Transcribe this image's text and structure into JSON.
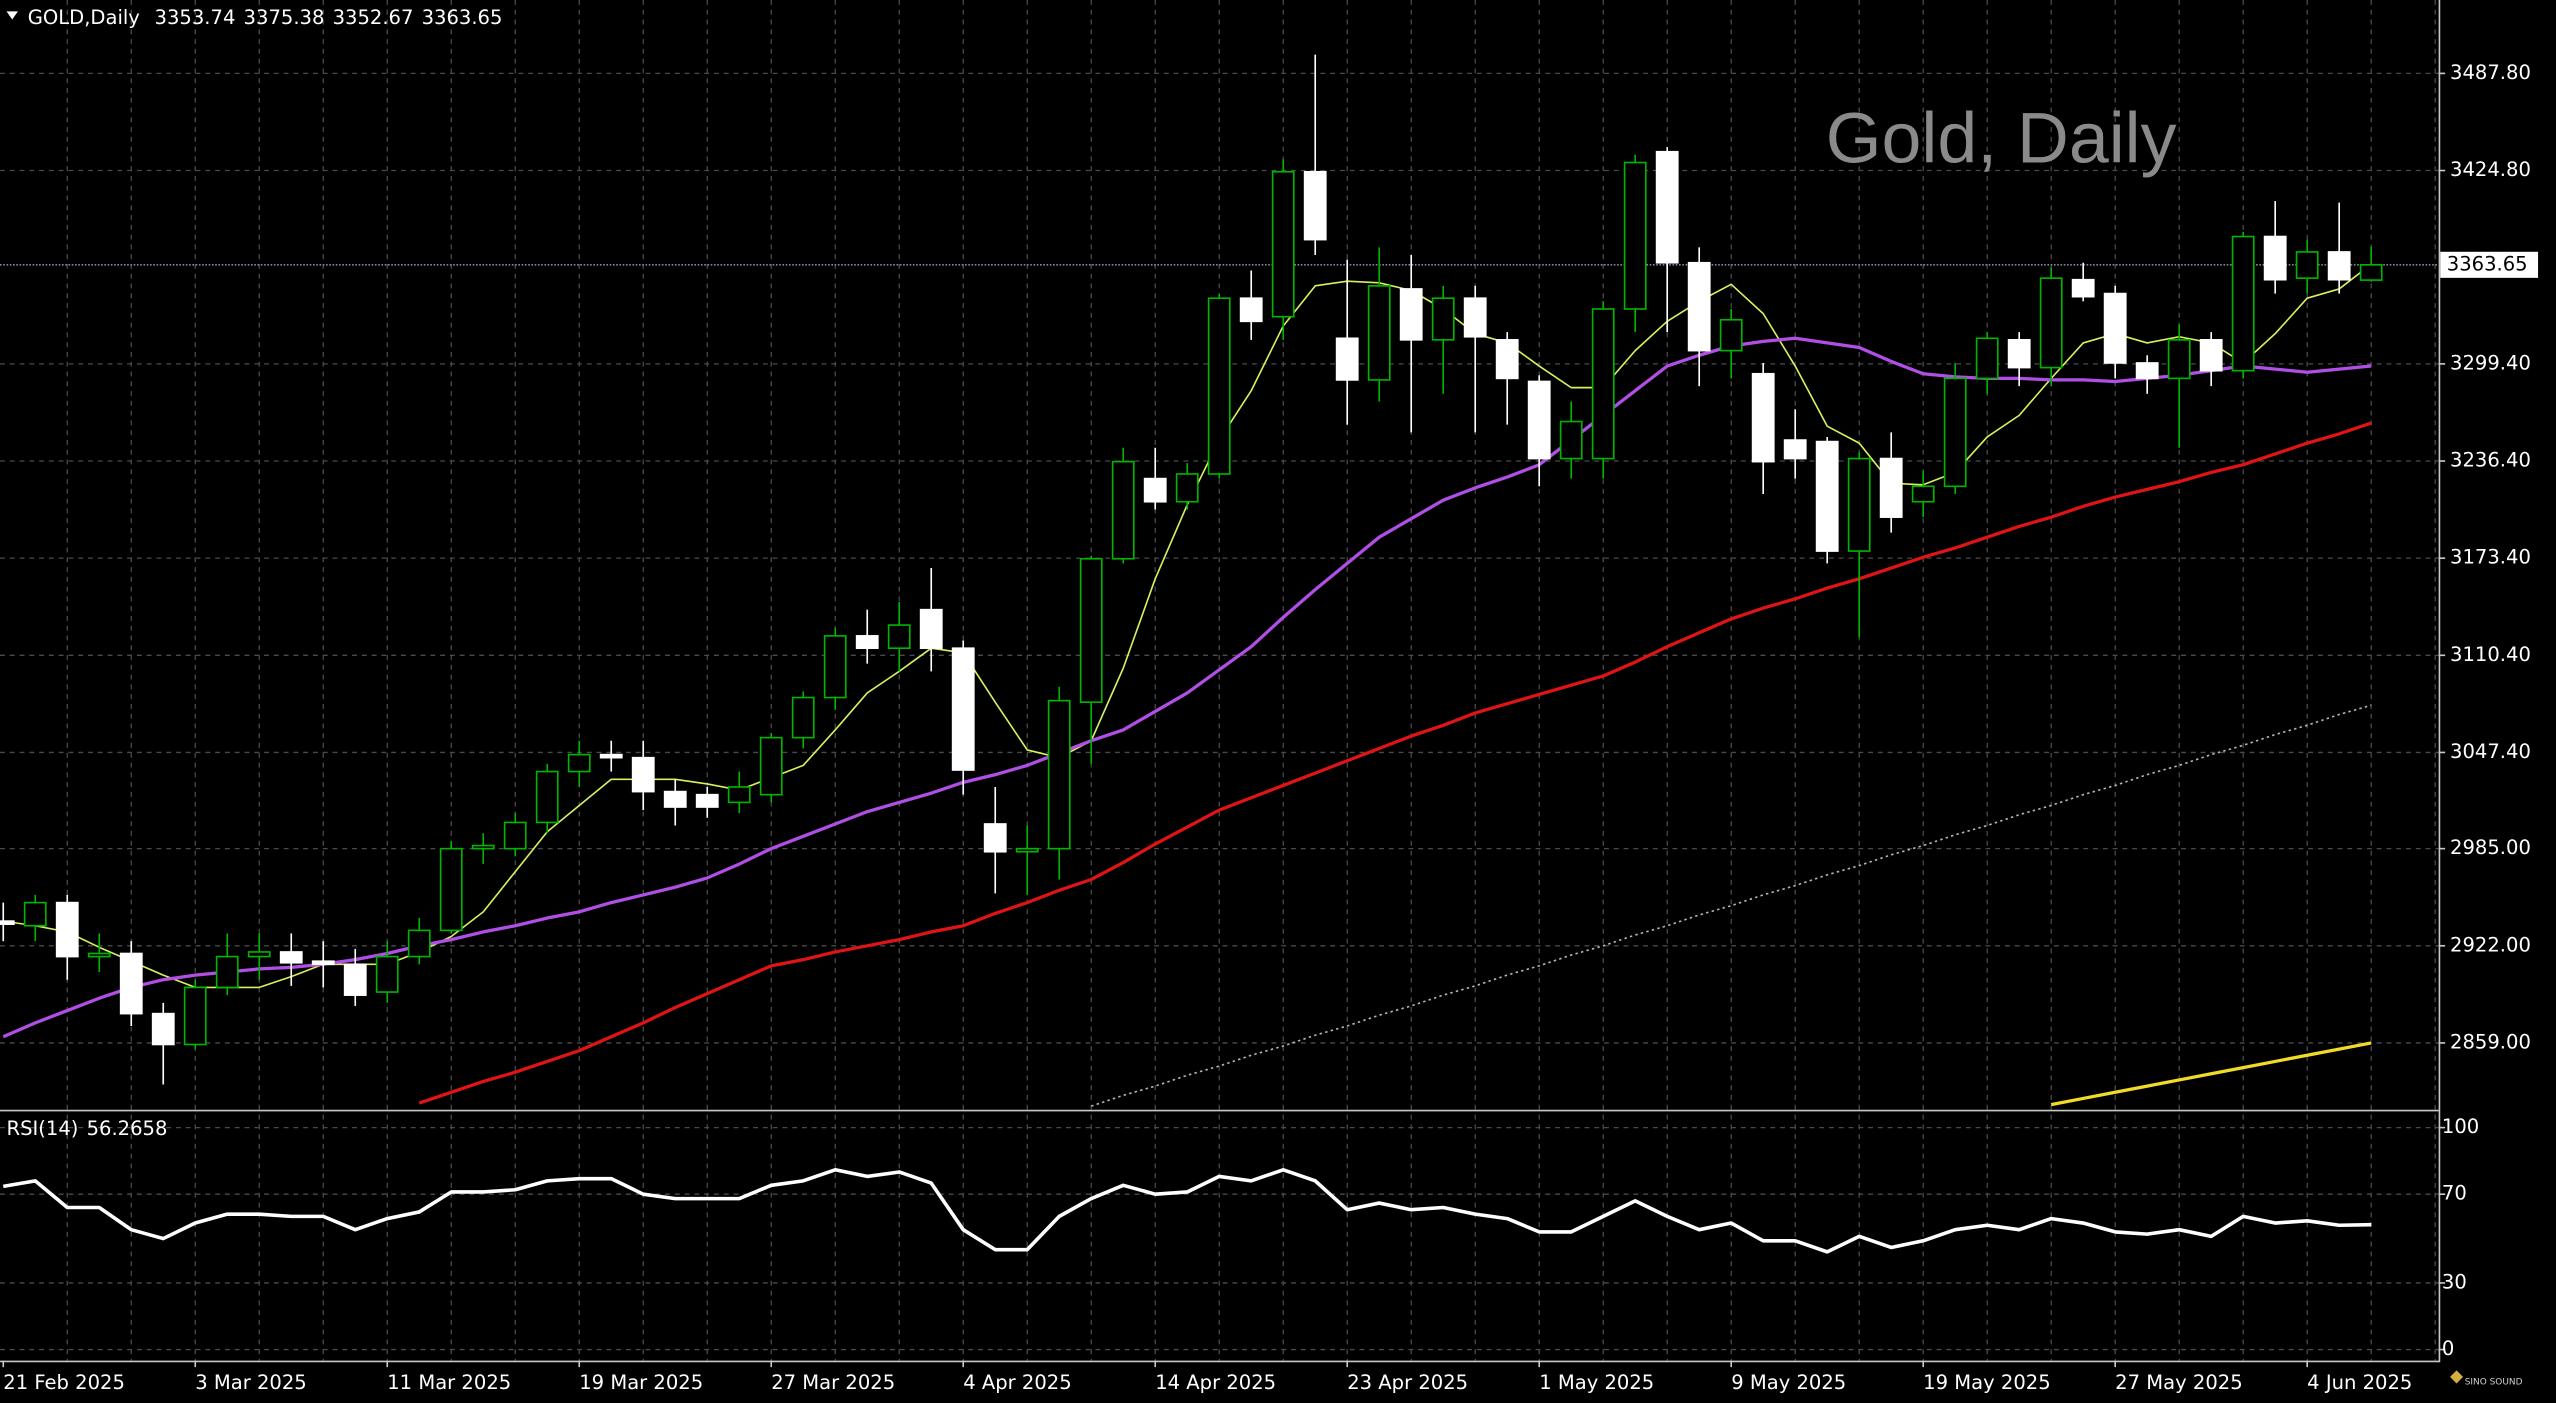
{
  "chart_data": {
    "type": "candlestick",
    "symbol": "GOLD,Daily",
    "watermark": "Gold, Daily",
    "logo": "SINO SOUND",
    "categories": [
      "21 Feb 2025",
      null,
      null,
      null,
      null,
      null,
      "3 Mar 2025",
      null,
      null,
      null,
      null,
      null,
      "11 Mar 2025",
      null,
      null,
      null,
      null,
      null,
      "19 Mar 2025",
      null,
      null,
      null,
      null,
      null,
      "27 Mar 2025",
      null,
      null,
      null,
      null,
      null,
      "4 Apr 2025",
      null,
      null,
      null,
      null,
      null,
      "14 Apr 2025",
      null,
      null,
      null,
      null,
      null,
      "23 Apr 2025",
      null,
      null,
      null,
      null,
      null,
      "1 May 2025",
      null,
      null,
      null,
      null,
      null,
      "9 May 2025",
      null,
      null,
      null,
      null,
      null,
      "19 May 2025",
      null,
      null,
      null,
      null,
      null,
      "27 May 2025",
      null,
      null,
      null,
      null,
      null,
      "4 Jun 2025",
      null,
      null
    ],
    "open": [
      2938,
      2935,
      2950,
      2915,
      2917,
      2878,
      2858,
      2895,
      2915,
      2918,
      2912,
      2910,
      2892,
      2915,
      2932,
      2985,
      2985,
      3002,
      3035,
      3046,
      3044,
      3022,
      3020,
      3015,
      3020,
      3057,
      3083,
      3123,
      3115,
      3140,
      3115,
      3001,
      2983,
      2985,
      3080,
      3173,
      3225,
      3210,
      3228,
      3342,
      3330,
      3424,
      3316,
      3289,
      3348,
      3315,
      3342,
      3315,
      3288,
      3238,
      3238,
      3335,
      3437,
      3365,
      3308,
      3293,
      3250,
      3249,
      3178,
      3238,
      3210,
      3220,
      3290,
      3315,
      3297,
      3354,
      3345,
      3300,
      3290,
      3315,
      3295,
      3382,
      3355,
      3372,
      3353.74
    ],
    "high": [
      2950,
      2955,
      2955,
      2930,
      2925,
      2885,
      2900,
      2930,
      2930,
      2930,
      2925,
      2920,
      2925,
      2940,
      2990,
      2995,
      3008,
      3040,
      3055,
      3055,
      3055,
      3030,
      3025,
      3035,
      3060,
      3087,
      3128,
      3140,
      3145,
      3167,
      3120,
      3025,
      3000,
      3090,
      3175,
      3245,
      3245,
      3235,
      3345,
      3360,
      3432,
      3500,
      3367,
      3375,
      3370,
      3350,
      3350,
      3320,
      3292,
      3275,
      3340,
      3435,
      3440,
      3375,
      3335,
      3300,
      3270,
      3252,
      3242,
      3255,
      3230,
      3300,
      3320,
      3320,
      3362,
      3365,
      3350,
      3305,
      3325,
      3320,
      3385,
      3405,
      3380,
      3404,
      3375.38
    ],
    "low": [
      2925,
      2925,
      2900,
      2905,
      2870,
      2832,
      2855,
      2890,
      2900,
      2896,
      2895,
      2883,
      2885,
      2910,
      2930,
      2975,
      2980,
      2995,
      3025,
      3035,
      3010,
      3000,
      3005,
      3008,
      3015,
      3050,
      3075,
      3105,
      3100,
      3100,
      3020,
      2956,
      2955,
      2965,
      3040,
      3170,
      3205,
      3205,
      3225,
      3315,
      3315,
      3370,
      3260,
      3275,
      3255,
      3280,
      3255,
      3260,
      3220,
      3225,
      3225,
      3320,
      3320,
      3285,
      3290,
      3215,
      3225,
      3170,
      3122,
      3190,
      3200,
      3215,
      3280,
      3285,
      3285,
      3340,
      3290,
      3280,
      3245,
      3285,
      3290,
      3345,
      3345,
      3345,
      3352.67
    ],
    "close": [
      2936,
      2950,
      2915,
      2917,
      2878,
      2858,
      2895,
      2915,
      2918,
      2911,
      2910,
      2890,
      2915,
      2932,
      2985,
      2987,
      3002,
      3035,
      3046,
      3044,
      3022,
      3012,
      3012,
      3025,
      3057,
      3083,
      3123,
      3115,
      3130,
      3115,
      3036,
      2983,
      2985,
      3081,
      3173,
      3236,
      3210,
      3228,
      3342,
      3327,
      3424,
      3380,
      3289,
      3350,
      3315,
      3342,
      3317,
      3290,
      3238,
      3262,
      3335,
      3430,
      3365,
      3308,
      3328,
      3236,
      3238,
      3178,
      3238,
      3200,
      3220,
      3290,
      3316,
      3297,
      3355,
      3343,
      3300,
      3290,
      3315,
      3295,
      3382,
      3354,
      3372,
      3354,
      3363.65
    ],
    "up_color": "#00b400",
    "down_color": "#ffffff",
    "series": [
      {
        "color": "#d8f060",
        "width": 1,
        "values": [
          2938,
          2935,
          2931,
          2921,
          2912,
          2903,
          2895,
          2895,
          2895,
          2902,
          2910,
          2910,
          2910,
          2918,
          2928,
          2944,
          2970,
          2996,
          3013,
          3030,
          3030,
          3030,
          3027,
          3023,
          3031,
          3039,
          3062,
          3086,
          3100,
          3115,
          3112,
          3080,
          3049,
          3044,
          3055,
          3102,
          3160,
          3208,
          3250,
          3282,
          3324,
          3350,
          3353,
          3352,
          3347,
          3335,
          3319,
          3313,
          3298,
          3284,
          3284,
          3308,
          3327,
          3340,
          3351,
          3332,
          3298,
          3259,
          3248,
          3222,
          3221,
          3229,
          3252,
          3266,
          3290,
          3313,
          3319,
          3313,
          3317,
          3313,
          3300,
          3319,
          3342,
          3348,
          3364
        ]
      },
      {
        "color": "#b04fe6",
        "width": 2,
        "values": [
          2863,
          2872,
          2880,
          2888,
          2895,
          2900,
          2903,
          2905,
          2907,
          2908,
          2910,
          2913,
          2917,
          2922,
          2926,
          2931,
          2935,
          2940,
          2944,
          2950,
          2955,
          2960,
          2966,
          2975,
          2985,
          2993,
          3001,
          3009,
          3015,
          3021,
          3028,
          3033,
          3039,
          3047,
          3055,
          3062,
          3074,
          3086,
          3101,
          3116,
          3135,
          3153,
          3170,
          3187,
          3199,
          3211,
          3219,
          3226,
          3234,
          3250,
          3266,
          3282,
          3298,
          3305,
          3311,
          3314,
          3316,
          3313,
          3310,
          3301,
          3293,
          3291,
          3290,
          3290,
          3289,
          3289,
          3288,
          3290,
          3292,
          3295,
          3298,
          3296,
          3294,
          3296,
          3298
        ]
      },
      {
        "color": "#e01414",
        "width": 2,
        "values": [
          null,
          null,
          null,
          null,
          null,
          null,
          null,
          null,
          null,
          null,
          null,
          null,
          null,
          2820,
          2827,
          2834,
          2840,
          2847,
          2854,
          2863,
          2872,
          2882,
          2891,
          2900,
          2909,
          2913,
          2918,
          2922,
          2926,
          2931,
          2935,
          2943,
          2950,
          2958,
          2965,
          2976,
          2988,
          2999,
          3010,
          3018,
          3026,
          3034,
          3042,
          3050,
          3058,
          3065,
          3073,
          3079,
          3085,
          3091,
          3097,
          3106,
          3116,
          3125,
          3134,
          3141,
          3147,
          3154,
          3160,
          3167,
          3174,
          3180,
          3187,
          3194,
          3200,
          3207,
          3213,
          3218,
          3223,
          3229,
          3234,
          3241,
          3248,
          3254,
          3261
        ]
      },
      {
        "color": "#b4b4b4",
        "width": 1,
        "style": "dotted",
        "values": [
          null,
          null,
          null,
          null,
          null,
          null,
          null,
          null,
          null,
          null,
          null,
          null,
          null,
          null,
          null,
          null,
          null,
          null,
          null,
          null,
          null,
          null,
          null,
          null,
          null,
          null,
          null,
          null,
          null,
          null,
          null,
          null,
          null,
          null,
          2818,
          2825,
          2831,
          2838,
          2844,
          2851,
          2857,
          2864,
          2870,
          2877,
          2883,
          2890,
          2896,
          2903,
          2909,
          2916,
          2922,
          2929,
          2935,
          2942,
          2948,
          2955,
          2961,
          2968,
          2974,
          2981,
          2987,
          2994,
          3000,
          3007,
          3013,
          3020,
          3026,
          3033,
          3039,
          3046,
          3052,
          3059,
          3065,
          3072,
          3078
        ]
      },
      {
        "color": "#f0dc28",
        "width": 2,
        "values": [
          null,
          null,
          null,
          null,
          null,
          null,
          null,
          null,
          null,
          null,
          null,
          null,
          null,
          null,
          null,
          null,
          null,
          null,
          null,
          null,
          null,
          null,
          null,
          null,
          null,
          null,
          null,
          null,
          null,
          null,
          null,
          null,
          null,
          null,
          null,
          null,
          null,
          null,
          null,
          null,
          null,
          null,
          null,
          null,
          null,
          null,
          null,
          null,
          null,
          null,
          null,
          null,
          null,
          null,
          null,
          null,
          null,
          null,
          null,
          null,
          null,
          null,
          null,
          null,
          2819,
          2823,
          2827,
          2831,
          2835,
          2839,
          2843,
          2847,
          2851,
          2855,
          2859
        ]
      }
    ],
    "ylim": [
      2815.7,
      3535.4
    ],
    "yticks": [
      {
        "value": 2859,
        "label": "2859.00"
      },
      {
        "value": 2922,
        "label": "2922.00"
      },
      {
        "value": 2985,
        "label": "2985.00"
      },
      {
        "value": 3047.4,
        "label": "3047.40"
      },
      {
        "value": 3110.4,
        "label": "3110.40"
      },
      {
        "value": 3173.4,
        "label": "3173.40"
      },
      {
        "value": 3236.4,
        "label": "3236.40"
      },
      {
        "value": 3299.4,
        "label": "3299.40"
      },
      {
        "value": 3424.8,
        "label": "3424.80"
      },
      {
        "value": 3487.8,
        "label": "3487.80"
      }
    ],
    "grid": true,
    "rsi": {
      "name": "RSI(14)",
      "color": "#ffffff",
      "values": [
        73.5,
        76,
        64,
        64,
        54,
        50,
        57,
        61,
        61,
        60,
        60,
        54,
        59,
        62,
        71,
        71,
        72,
        76,
        77,
        77,
        70,
        68,
        68,
        68,
        74,
        76,
        81,
        78,
        80,
        75,
        54,
        45,
        45,
        60,
        68,
        74,
        70,
        71,
        78,
        76,
        81,
        76,
        63,
        66,
        63,
        64,
        61,
        59,
        53,
        53,
        60,
        67,
        60,
        54,
        57,
        49,
        49,
        44,
        51,
        46,
        49,
        54,
        56,
        54,
        59,
        57,
        53,
        52,
        54,
        51,
        60,
        57,
        58,
        56,
        56.2658
      ],
      "ylim": [
        -5,
        106.6
      ],
      "yticks": [
        100,
        70,
        30,
        0
      ]
    }
  }
}
